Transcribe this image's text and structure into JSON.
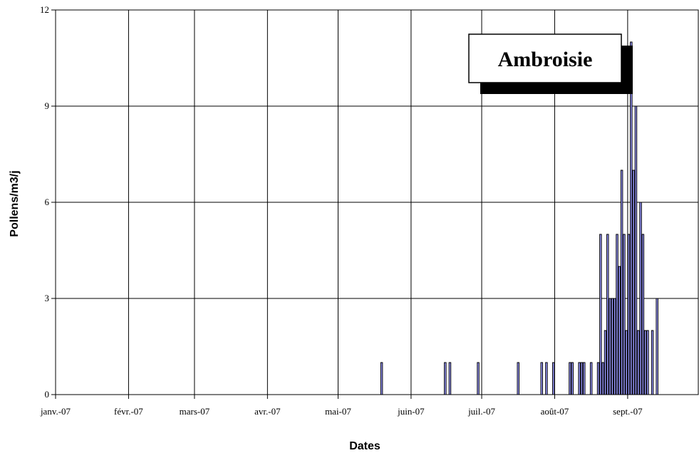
{
  "chart_data": {
    "type": "bar",
    "title": "",
    "xlabel": "Dates",
    "ylabel": "Pollens/m3/j",
    "ylim": [
      0,
      12
    ],
    "yticks": [
      0,
      3,
      6,
      9,
      12
    ],
    "xlim": [
      "2007-01-01",
      "2007-09-30"
    ],
    "xticks": [
      {
        "date": "2007-01-01",
        "label": "janv.-07"
      },
      {
        "date": "2007-02-01",
        "label": "févr.-07"
      },
      {
        "date": "2007-03-01",
        "label": "mars-07"
      },
      {
        "date": "2007-04-01",
        "label": "avr.-07"
      },
      {
        "date": "2007-05-01",
        "label": "mai-07"
      },
      {
        "date": "2007-06-01",
        "label": "juin-07"
      },
      {
        "date": "2007-07-01",
        "label": "juil.-07"
      },
      {
        "date": "2007-08-01",
        "label": "août-07"
      },
      {
        "date": "2007-09-01",
        "label": "sept.-07"
      }
    ],
    "grid": true,
    "legend_placement": "top-right",
    "series": [
      {
        "name": "Ambroisie",
        "color": "#9999ff",
        "points": [
          {
            "x": "2007-05-19",
            "y": 1
          },
          {
            "x": "2007-06-15",
            "y": 1
          },
          {
            "x": "2007-06-17",
            "y": 1
          },
          {
            "x": "2007-06-29",
            "y": 1
          },
          {
            "x": "2007-07-16",
            "y": 1
          },
          {
            "x": "2007-07-26",
            "y": 1
          },
          {
            "x": "2007-07-28",
            "y": 1
          },
          {
            "x": "2007-07-31",
            "y": 1
          },
          {
            "x": "2007-08-07",
            "y": 1
          },
          {
            "x": "2007-08-08",
            "y": 1
          },
          {
            "x": "2007-08-11",
            "y": 1
          },
          {
            "x": "2007-08-12",
            "y": 1
          },
          {
            "x": "2007-08-13",
            "y": 1
          },
          {
            "x": "2007-08-16",
            "y": 1
          },
          {
            "x": "2007-08-19",
            "y": 1
          },
          {
            "x": "2007-08-20",
            "y": 5
          },
          {
            "x": "2007-08-21",
            "y": 1
          },
          {
            "x": "2007-08-22",
            "y": 2
          },
          {
            "x": "2007-08-23",
            "y": 5
          },
          {
            "x": "2007-08-24",
            "y": 3
          },
          {
            "x": "2007-08-25",
            "y": 3
          },
          {
            "x": "2007-08-26",
            "y": 3
          },
          {
            "x": "2007-08-27",
            "y": 5
          },
          {
            "x": "2007-08-28",
            "y": 4
          },
          {
            "x": "2007-08-29",
            "y": 7
          },
          {
            "x": "2007-08-30",
            "y": 5
          },
          {
            "x": "2007-08-31",
            "y": 2
          },
          {
            "x": "2007-09-01",
            "y": 5
          },
          {
            "x": "2007-09-02",
            "y": 11
          },
          {
            "x": "2007-09-03",
            "y": 7
          },
          {
            "x": "2007-09-04",
            "y": 9
          },
          {
            "x": "2007-09-05",
            "y": 2
          },
          {
            "x": "2007-09-06",
            "y": 6
          },
          {
            "x": "2007-09-07",
            "y": 5
          },
          {
            "x": "2007-09-08",
            "y": 2
          },
          {
            "x": "2007-09-09",
            "y": 2
          },
          {
            "x": "2007-09-11",
            "y": 2
          },
          {
            "x": "2007-09-13",
            "y": 3
          }
        ]
      }
    ]
  }
}
